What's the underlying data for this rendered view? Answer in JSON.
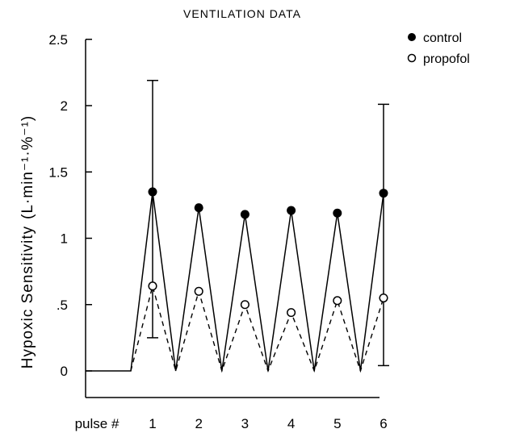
{
  "chart_data": {
    "type": "line",
    "title": "VENTILATION DATA",
    "ylabel": "Hypoxic Sensitivity",
    "ylabel_units": "(L·min⁻¹·%⁻¹)",
    "xlabel": "pulse #",
    "categories": [
      "1",
      "2",
      "3",
      "4",
      "5",
      "6"
    ],
    "ylim": [
      -0.2,
      2.5
    ],
    "yticks": [
      {
        "value": 2.5,
        "label": "2.5"
      },
      {
        "value": 2,
        "label": "2"
      },
      {
        "value": 1.5,
        "label": "1.5"
      },
      {
        "value": 1,
        "label": "1"
      },
      {
        "value": 0.5,
        "label": ".5"
      },
      {
        "value": 0,
        "label": "0"
      }
    ],
    "series": [
      {
        "name": "control",
        "marker": "filled-circle",
        "line": "solid",
        "values": [
          1.35,
          1.23,
          1.18,
          1.21,
          1.19,
          1.34
        ],
        "error_bar": {
          "1": [
            0.25,
            2.19
          ],
          "6": [
            0.04,
            2.01
          ]
        }
      },
      {
        "name": "propofol",
        "marker": "open-circle",
        "line": "dashed",
        "values": [
          0.64,
          0.6,
          0.5,
          0.44,
          0.53,
          0.55
        ]
      }
    ],
    "baseline": 0,
    "grid": false,
    "legend": "top-right"
  }
}
